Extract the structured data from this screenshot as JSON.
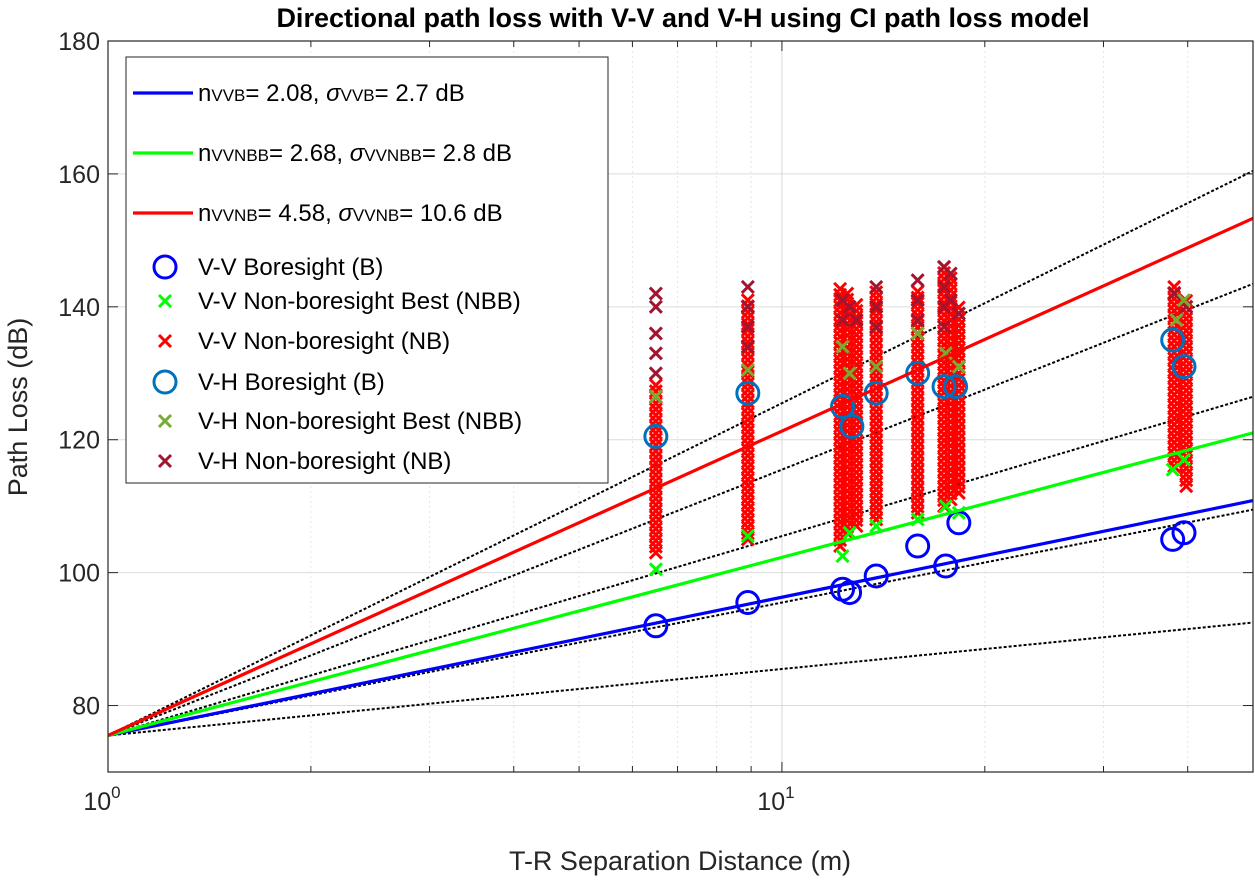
{
  "chart_data": {
    "type": "scatter",
    "title": "Directional path loss with V-V and V-H using CI path loss model",
    "xlabel": "T-R Separation Distance (m)",
    "ylabel": "Path Loss (dB)",
    "xscale": "log",
    "xlim": [
      1,
      50
    ],
    "ylim": [
      70,
      180
    ],
    "yticks": [
      80,
      100,
      120,
      140,
      160,
      180
    ],
    "xticks": [
      {
        "value": 1,
        "base": "10",
        "exp": "0"
      },
      {
        "value": 10,
        "base": "10",
        "exp": "1"
      }
    ],
    "grid": true,
    "legend_position": "top-left",
    "fspl_intercept": 75.5,
    "fit_lines": [
      {
        "name": "CI V-V boresight",
        "n": 2.08,
        "color": "#0000ff",
        "legend": {
          "sym": "n",
          "sub": "B",
          "sup": "VV",
          "pre": "= 2.08, ",
          "sym2": "σ",
          "sub2": "B",
          "sup2": "VV",
          "post": "= 2.7 dB"
        }
      },
      {
        "name": "CI V-V non-boresight best",
        "n": 2.68,
        "color": "#00ff00",
        "legend": {
          "sym": "n",
          "sub": "NBB",
          "sup": "VV",
          "pre": "= 2.68, ",
          "sym2": "σ",
          "sub2": "NBB",
          "sup2": "VV",
          "post": "= 2.8 dB"
        }
      },
      {
        "name": "CI V-V non-boresight",
        "n": 4.58,
        "color": "#ff0000",
        "legend": {
          "sym": "n",
          "sub": "NB",
          "sup": "VV",
          "pre": "= 4.58, ",
          "sym2": "σ",
          "sub2": "NB",
          "sup2": "VV",
          "post": "= 10.6 dB"
        }
      }
    ],
    "reference_lines": [
      {
        "n": 1,
        "color": "#000000"
      },
      {
        "n": 2,
        "color": "#000000"
      },
      {
        "n": 3,
        "color": "#000000"
      },
      {
        "n": 4,
        "color": "#000000"
      },
      {
        "n": 5,
        "color": "#000000"
      }
    ],
    "series": [
      {
        "name": "V-V Boresight (B)",
        "marker": "o",
        "color": "#0000ff",
        "points": [
          [
            6.5,
            92
          ],
          [
            8.9,
            95.5
          ],
          [
            12.3,
            97.5
          ],
          [
            12.6,
            97
          ],
          [
            13.8,
            99.5
          ],
          [
            15.9,
            104
          ],
          [
            17.5,
            101
          ],
          [
            18.3,
            107.5
          ],
          [
            38,
            105
          ],
          [
            39.5,
            106
          ]
        ]
      },
      {
        "name": "V-V Non-boresight Best (NBB)",
        "marker": "x",
        "color": "#00ff00",
        "points": [
          [
            6.5,
            100.5
          ],
          [
            8.9,
            105.5
          ],
          [
            12.3,
            102.5
          ],
          [
            12.6,
            106
          ],
          [
            13.8,
            107
          ],
          [
            15.9,
            108
          ],
          [
            17.5,
            110
          ],
          [
            18.3,
            109
          ],
          [
            38,
            115.5
          ],
          [
            39.5,
            117
          ]
        ]
      },
      {
        "name": "V-V Non-boresight (NB)",
        "marker": "x",
        "color": "#ff0000",
        "columns": [
          {
            "x": 6.5,
            "ymin": 103,
            "ymax": 129
          },
          {
            "x": 8.9,
            "ymin": 105,
            "ymax": 141
          },
          {
            "x": 12.2,
            "ymin": 104,
            "ymax": 143
          },
          {
            "x": 12.5,
            "ymin": 106,
            "ymax": 142
          },
          {
            "x": 12.9,
            "ymin": 107,
            "ymax": 141
          },
          {
            "x": 13.8,
            "ymin": 108,
            "ymax": 143
          },
          {
            "x": 15.9,
            "ymin": 109,
            "ymax": 143
          },
          {
            "x": 17.4,
            "ymin": 110,
            "ymax": 146
          },
          {
            "x": 17.8,
            "ymin": 111,
            "ymax": 145
          },
          {
            "x": 18.3,
            "ymin": 112,
            "ymax": 140
          },
          {
            "x": 38.2,
            "ymin": 116,
            "ymax": 143
          },
          {
            "x": 39.8,
            "ymin": 113,
            "ymax": 141
          }
        ]
      },
      {
        "name": "V-H Boresight (B)",
        "marker": "o",
        "color": "#0072bd",
        "points": [
          [
            6.5,
            120.5
          ],
          [
            8.9,
            127
          ],
          [
            12.3,
            125
          ],
          [
            12.7,
            122
          ],
          [
            13.8,
            127
          ],
          [
            15.9,
            130
          ],
          [
            17.4,
            128
          ],
          [
            18.1,
            128
          ],
          [
            38,
            135
          ],
          [
            39.5,
            131
          ]
        ]
      },
      {
        "name": "V-H Non-boresight Best (NBB)",
        "marker": "x",
        "color": "#77ac30",
        "points": [
          [
            6.5,
            126.5
          ],
          [
            8.9,
            130.5
          ],
          [
            12.3,
            134
          ],
          [
            12.6,
            130
          ],
          [
            13.8,
            131
          ],
          [
            15.9,
            136
          ],
          [
            17.5,
            133
          ],
          [
            18.3,
            131
          ],
          [
            38.5,
            138
          ],
          [
            39.5,
            141
          ]
        ]
      },
      {
        "name": "V-H Non-boresight (NB)",
        "marker": "x",
        "color": "#a2142f",
        "points": [
          [
            6.5,
            142
          ],
          [
            6.5,
            140
          ],
          [
            6.5,
            136
          ],
          [
            6.5,
            133
          ],
          [
            6.5,
            130
          ],
          [
            8.9,
            143
          ],
          [
            8.9,
            140
          ],
          [
            8.9,
            137
          ],
          [
            8.9,
            134
          ],
          [
            12.3,
            141
          ],
          [
            12.3,
            138
          ],
          [
            12.6,
            140
          ],
          [
            12.9,
            138
          ],
          [
            13.8,
            143
          ],
          [
            13.8,
            140
          ],
          [
            13.8,
            137
          ],
          [
            15.9,
            144
          ],
          [
            15.9,
            141
          ],
          [
            15.9,
            138
          ],
          [
            17.4,
            146
          ],
          [
            17.4,
            143
          ],
          [
            17.4,
            140
          ],
          [
            17.4,
            137
          ],
          [
            17.8,
            145
          ],
          [
            17.8,
            141
          ],
          [
            18.3,
            139
          ],
          [
            38.2,
            142
          ],
          [
            39.8,
            140
          ]
        ]
      }
    ]
  }
}
